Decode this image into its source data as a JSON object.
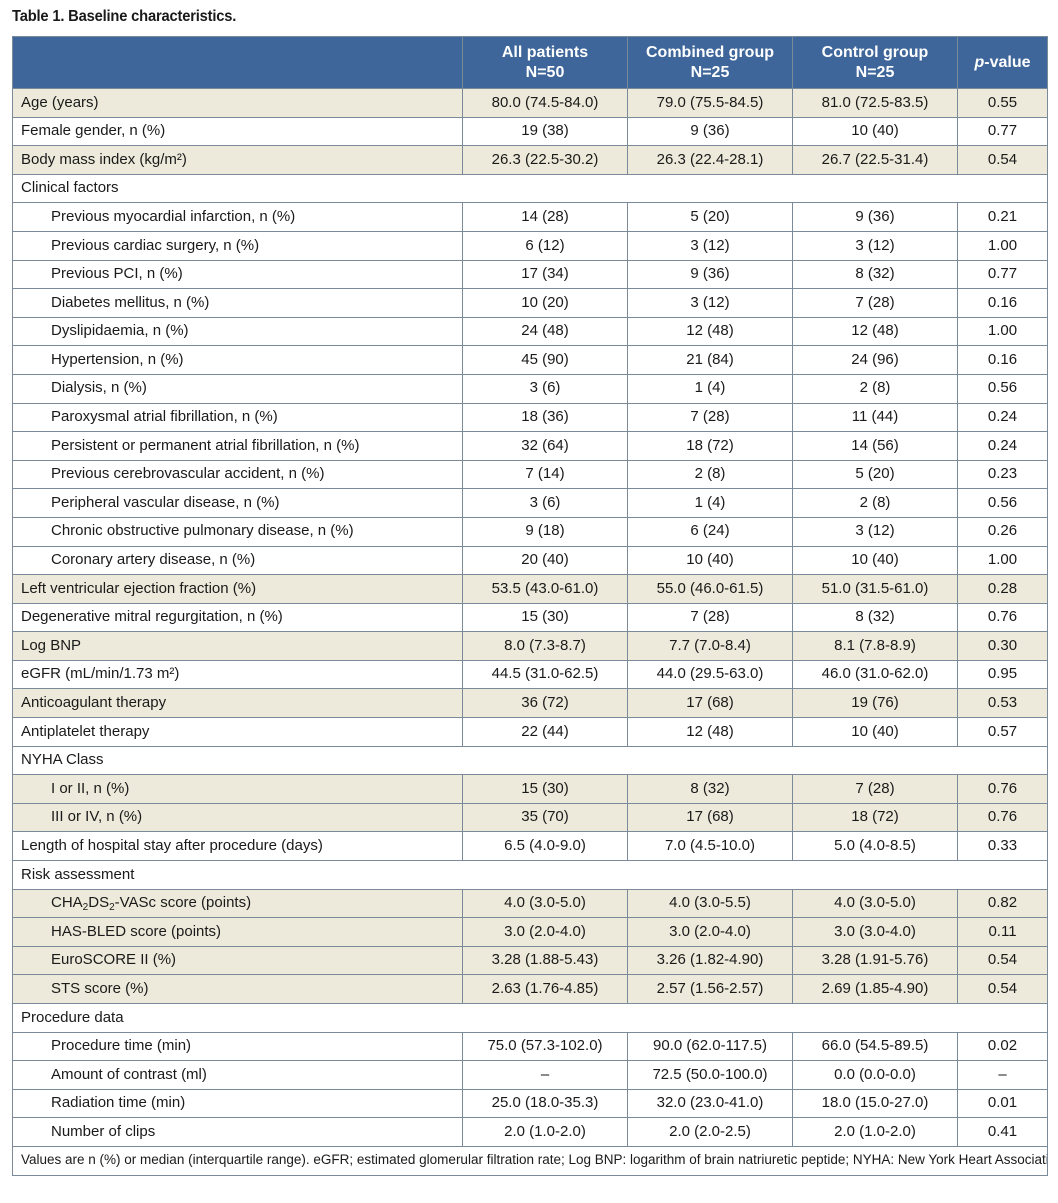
{
  "caption": "Table 1. Baseline characteristics.",
  "header": {
    "col1_line1": "All patients",
    "col1_line2": "N=50",
    "col2_line1": "Combined group",
    "col2_line2": "N=25",
    "col3_line1": "Control group",
    "col3_line2": "N=25",
    "p_italic": "p",
    "p_rest": "-value"
  },
  "rows": [
    {
      "label": "Age (years)",
      "all": "80.0 (74.5-84.0)",
      "combined": "79.0 (75.5-84.5)",
      "control": "81.0 (72.5-83.5)",
      "p": "0.55"
    },
    {
      "label": "Female gender, n (%)",
      "all": "19 (38)",
      "combined": "9 (36)",
      "control": "10 (40)",
      "p": "0.77"
    },
    {
      "label": "Body mass index (kg/m²)",
      "all": "26.3 (22.5-30.2)",
      "combined": "26.3 (22.4-28.1)",
      "control": "26.7 (22.5-31.4)",
      "p": "0.54"
    },
    {
      "label": "Clinical factors"
    },
    {
      "label": "Previous myocardial infarction, n (%)",
      "all": "14 (28)",
      "combined": "5 (20)",
      "control": "9 (36)",
      "p": "0.21"
    },
    {
      "label": "Previous cardiac surgery, n (%)",
      "all": "6 (12)",
      "combined": "3 (12)",
      "control": "3 (12)",
      "p": "1.00"
    },
    {
      "label": "Previous PCI, n (%)",
      "all": "17 (34)",
      "combined": "9 (36)",
      "control": "8 (32)",
      "p": "0.77"
    },
    {
      "label": "Diabetes mellitus, n (%)",
      "all": "10 (20)",
      "combined": "3 (12)",
      "control": "7 (28)",
      "p": "0.16"
    },
    {
      "label": "Dyslipidaemia, n (%)",
      "all": "24 (48)",
      "combined": "12 (48)",
      "control": "12 (48)",
      "p": "1.00"
    },
    {
      "label": "Hypertension, n (%)",
      "all": "45 (90)",
      "combined": "21 (84)",
      "control": "24 (96)",
      "p": "0.16"
    },
    {
      "label": "Dialysis, n (%)",
      "all": "3 (6)",
      "combined": "1 (4)",
      "control": "2 (8)",
      "p": "0.56"
    },
    {
      "label": "Paroxysmal atrial fibrillation, n (%)",
      "all": "18 (36)",
      "combined": "7 (28)",
      "control": "11 (44)",
      "p": "0.24"
    },
    {
      "label": "Persistent or permanent atrial fibrillation, n (%)",
      "all": "32 (64)",
      "combined": "18 (72)",
      "control": "14 (56)",
      "p": "0.24"
    },
    {
      "label": "Previous cerebrovascular accident, n (%)",
      "all": "7 (14)",
      "combined": "2 (8)",
      "control": "5 (20)",
      "p": "0.23"
    },
    {
      "label": "Peripheral vascular disease, n (%)",
      "all": "3 (6)",
      "combined": "1 (4)",
      "control": "2 (8)",
      "p": "0.56"
    },
    {
      "label": "Chronic obstructive pulmonary disease, n (%)",
      "all": "9 (18)",
      "combined": "6 (24)",
      "control": "3 (12)",
      "p": "0.26"
    },
    {
      "label": "Coronary artery disease, n (%)",
      "all": "20 (40)",
      "combined": "10 (40)",
      "control": "10 (40)",
      "p": "1.00"
    },
    {
      "label": "Left ventricular ejection fraction (%)",
      "all": "53.5 (43.0-61.0)",
      "combined": "55.0 (46.0-61.5)",
      "control": "51.0 (31.5-61.0)",
      "p": "0.28"
    },
    {
      "label": "Degenerative mitral regurgitation, n (%)",
      "all": "15 (30)",
      "combined": "7 (28)",
      "control": "8 (32)",
      "p": "0.76"
    },
    {
      "label": "Log BNP",
      "all": "8.0 (7.3-8.7)",
      "combined": "7.7 (7.0-8.4)",
      "control": "8.1 (7.8-8.9)",
      "p": "0.30"
    },
    {
      "label": "eGFR (mL/min/1.73 m²)",
      "all": "44.5 (31.0-62.5)",
      "combined": "44.0 (29.5-63.0)",
      "control": "46.0 (31.0-62.0)",
      "p": "0.95"
    },
    {
      "label": "Anticoagulant therapy",
      "all": "36 (72)",
      "combined": "17 (68)",
      "control": "19 (76)",
      "p": "0.53"
    },
    {
      "label": "Antiplatelet therapy",
      "all": "22 (44)",
      "combined": "12 (48)",
      "control": "10 (40)",
      "p": "0.57"
    },
    {
      "label": "NYHA Class"
    },
    {
      "label": "I or II, n (%)",
      "all": "15 (30)",
      "combined": "8 (32)",
      "control": "7 (28)",
      "p": "0.76"
    },
    {
      "label": "III or IV, n (%)",
      "all": "35 (70)",
      "combined": "17 (68)",
      "control": "18 (72)",
      "p": "0.76"
    },
    {
      "label": "Length of hospital stay after procedure (days)",
      "all": "6.5 (4.0-9.0)",
      "combined": "7.0 (4.5-10.0)",
      "control": "5.0 (4.0-8.5)",
      "p": "0.33"
    },
    {
      "label": "Risk assessment"
    },
    {
      "label_parts": [
        "CHA",
        "2",
        "DS",
        "2",
        "-VASc score (points)"
      ],
      "all": "4.0 (3.0-5.0)",
      "combined": "4.0 (3.0-5.5)",
      "control": "4.0 (3.0-5.0)",
      "p": "0.82"
    },
    {
      "label": "HAS-BLED score (points)",
      "all": "3.0 (2.0-4.0)",
      "combined": "3.0 (2.0-4.0)",
      "control": "3.0 (3.0-4.0)",
      "p": "0.11"
    },
    {
      "label": "EuroSCORE II (%)",
      "all": "3.28 (1.88-5.43)",
      "combined": "3.26 (1.82-4.90)",
      "control": "3.28 (1.91-5.76)",
      "p": "0.54"
    },
    {
      "label": "STS score (%)",
      "all": "2.63 (1.76-4.85)",
      "combined": "2.57 (1.56-2.57)",
      "control": "2.69 (1.85-4.90)",
      "p": "0.54"
    },
    {
      "label": "Procedure data"
    },
    {
      "label": "Procedure time (min)",
      "all": "75.0 (57.3-102.0)",
      "combined": "90.0 (62.0-117.5)",
      "control": "66.0 (54.5-89.5)",
      "p": "0.02"
    },
    {
      "label": "Amount of contrast (ml)",
      "all": "–",
      "combined": "72.5 (50.0-100.0)",
      "control": "0.0 (0.0-0.0)",
      "p": "–"
    },
    {
      "label": "Radiation time (min)",
      "all": "25.0 (18.0-35.3)",
      "combined": "32.0 (23.0-41.0)",
      "control": "18.0 (15.0-27.0)",
      "p": "0.01"
    },
    {
      "label": "Number of clips",
      "all": "2.0 (1.0-2.0)",
      "combined": "2.0 (2.0-2.5)",
      "control": "2.0 (1.0-2.0)",
      "p": "0.41"
    }
  ],
  "footnote": "Values are n (%) or median (interquartile range). eGFR; estimated glomerular filtration rate; Log BNP: logarithm of brain natriuretic peptide; NYHA: New York Heart Association; PCI: percutaneous coronary intervention",
  "colors": {
    "header_bg": "#3e669a",
    "header_text": "#ffffff",
    "shaded_row": "#eeeadb",
    "border": "#7b8a99"
  }
}
